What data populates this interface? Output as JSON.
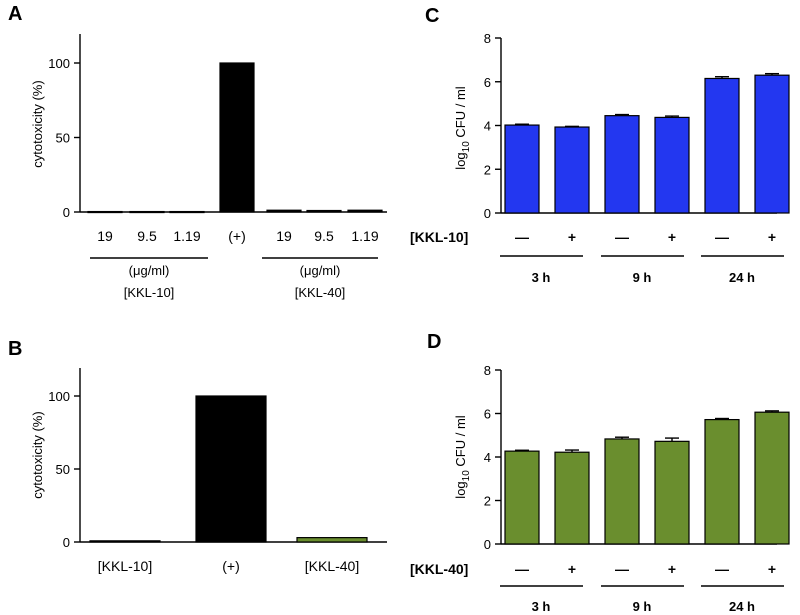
{
  "chart_data": [
    {
      "panel": "A",
      "type": "bar",
      "ylabel": "cytotoxicity (%)",
      "ylim": [
        0,
        120
      ],
      "yticks": [
        "0",
        "50",
        "100"
      ],
      "categories": [
        "19",
        "9.5",
        "1.19",
        "(+)",
        "19",
        "9.5",
        "1.19"
      ],
      "values": [
        0.3,
        0.3,
        0.3,
        100,
        1.2,
        1.0,
        1.2
      ],
      "colors": [
        "#000000"
      ],
      "groups": [
        {
          "unit": "(μg/ml)",
          "label": "[KKL-10]"
        },
        {
          "unit": "(μg/ml)",
          "label": "[KKL-40]"
        }
      ]
    },
    {
      "panel": "B",
      "type": "bar",
      "ylabel": "cytotoxicity (%)",
      "ylim": [
        0,
        120
      ],
      "yticks": [
        "0",
        "50",
        "100"
      ],
      "categories": [
        "[KKL-10]",
        "(+)",
        "[KKL-40]"
      ],
      "values": [
        0.8,
        100,
        3.0
      ],
      "colors": [
        "#6a8e2e",
        "#000000",
        "#6a8e2e"
      ]
    },
    {
      "panel": "C",
      "type": "bar",
      "ylabel_main": "log",
      "ylabel_sub": "10",
      "ylabel_rest": " CFU / ml",
      "ylim": [
        0,
        8
      ],
      "yticks": [
        "0",
        "2",
        "4",
        "6",
        "8"
      ],
      "row_label": "[KKL-10]",
      "categories": [
        "—",
        "+",
        "—",
        "+",
        "—",
        "+"
      ],
      "values": [
        4.02,
        3.93,
        4.45,
        4.37,
        6.15,
        6.3
      ],
      "errors": [
        0.04,
        0.03,
        0.05,
        0.06,
        0.08,
        0.07
      ],
      "color": "#2337f0",
      "groups": [
        "3 h",
        "9 h",
        "24 h"
      ]
    },
    {
      "panel": "D",
      "type": "bar",
      "ylabel_main": "log",
      "ylabel_sub": "10",
      "ylabel_rest": " CFU / ml",
      "ylim": [
        0,
        8
      ],
      "yticks": [
        "0",
        "2",
        "4",
        "6",
        "8"
      ],
      "row_label": "[KKL-40]",
      "categories": [
        "—",
        "+",
        "—",
        "+",
        "—",
        "+"
      ],
      "values": [
        4.27,
        4.22,
        4.83,
        4.72,
        5.72,
        6.06
      ],
      "errors": [
        0.04,
        0.1,
        0.08,
        0.15,
        0.05,
        0.06
      ],
      "color": "#6a8e2e",
      "groups": [
        "3 h",
        "9 h",
        "24 h"
      ]
    }
  ]
}
